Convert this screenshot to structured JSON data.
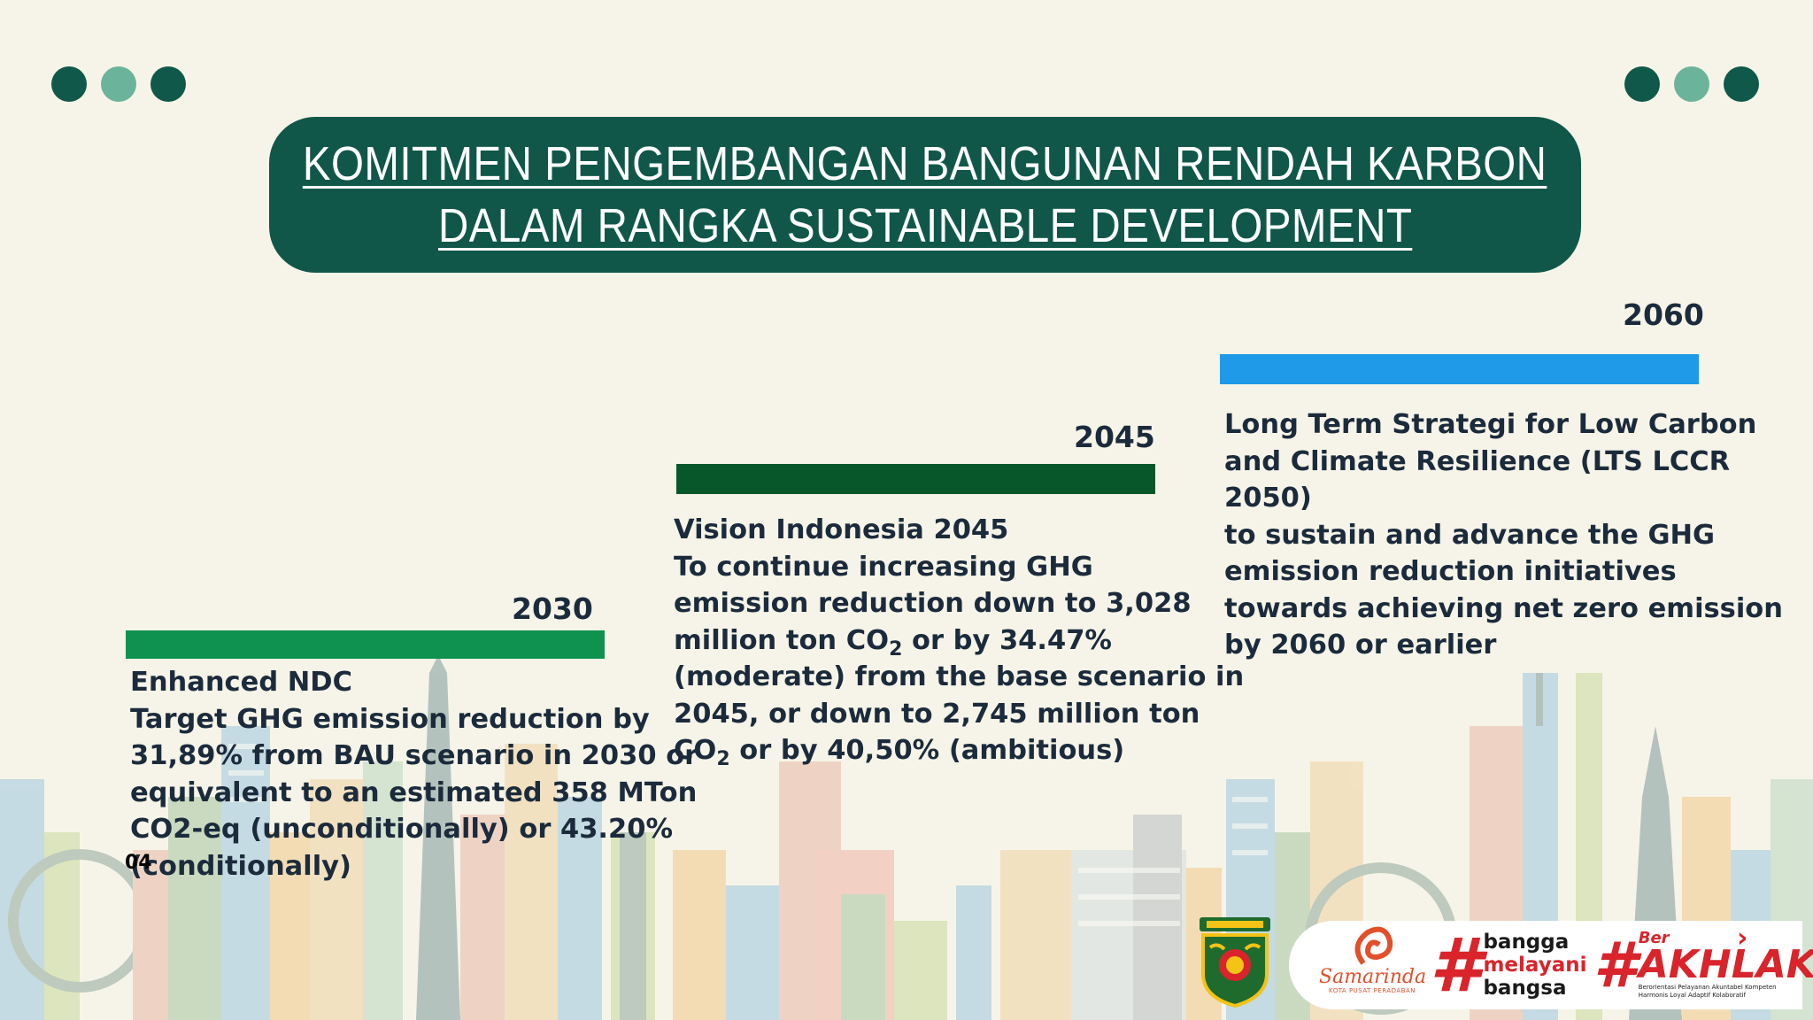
{
  "slide": {
    "title_lines": [
      "KOMITMEN PENGEMBANGAN BANGUNAN RENDAH KARBON",
      "DALAM RANGKA SUSTAINABLE DEVELOPMENT"
    ]
  },
  "colors": {
    "title_bg": "#10574a",
    "bar_2030": "#0f9150",
    "bar_2045": "#07572a",
    "bar_2060": "#1e9ae8",
    "dot_dark": "#10594a",
    "dot_light": "#6bb49b"
  },
  "milestones": [
    {
      "year": "2030",
      "heading": "Enhanced NDC",
      "lines": [
        "Target GHG emission reduction by",
        "31,89% from BAU scenario in 2030 or",
        "equivalent to an estimated 358 MTon",
        "CO2-eq (unconditionally) or 43.20%",
        "(conditionally)"
      ]
    },
    {
      "year": "2045",
      "heading": "Vision Indonesia 2045",
      "l1": "To continue increasing GHG",
      "l2": "emission reduction down to 3,028",
      "l3a": "million ton CO",
      "sub": "2",
      "l3b": " or by 34.47%",
      "l4": "(moderate) from the base scenario in",
      "l5": "2045,  or down to 2,745 million ton",
      "l6a": "CO",
      "l6b": " or by 40,50% (ambitious)"
    },
    {
      "year": "2060",
      "heading_lines": [
        "Long Term Strategi for Low Carbon",
        "and Climate Resilience (LTS LCCR",
        "2050)"
      ],
      "lines": [
        "to sustain and advance the GHG",
        "emission reduction initiatives",
        "towards achieving net zero emission",
        "by 2060 or earlier"
      ]
    }
  ],
  "stray_mark": "04",
  "logos": {
    "emblem_icon": "kota-samarinda-emblem",
    "samarinda_name": "Samarinda",
    "samarinda_tagline": "KOTA PUSAT PERADABAN",
    "bangga_hash": "#",
    "bangga_lines": [
      "bangga",
      "melayani",
      "bangsa"
    ],
    "akhlak_hash": "#",
    "akhlak_ber": "Ber",
    "akhlak_word": "AKHLAK",
    "akhlak_tagline": "Berorientasi Pelayanan Akuntabel Kompeten Harmonis Loyal Adaptif Kolaboratif"
  }
}
